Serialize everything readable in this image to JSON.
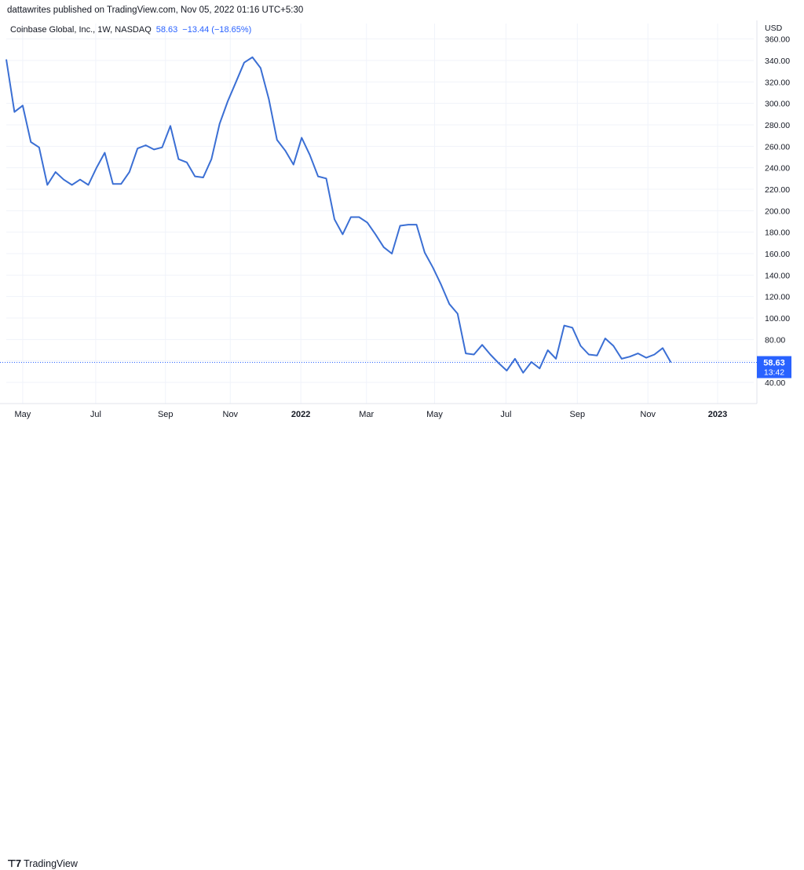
{
  "header": {
    "published_text": "dattawrites published on TradingView.com, Nov 05, 2022 01:16 UTC+5:30"
  },
  "legend": {
    "symbol_text": "Coinbase Global, Inc., 1W, NASDAQ",
    "last_price": "58.63",
    "change": "−13.44 (−18.65%)"
  },
  "price_tag": {
    "value": "58.63",
    "countdown": "13:42"
  },
  "footer": {
    "logo_text": "TradingView"
  },
  "colors": {
    "line": "#3b6fd4",
    "grid": "#f0f3fa",
    "tag": "#2962ff",
    "axis_text": "#131722"
  },
  "chart_data": {
    "type": "line",
    "title": "Coinbase Global, Inc., 1W, NASDAQ",
    "ylabel": "USD",
    "ylim": [
      30,
      360
    ],
    "y_ticks": [
      40,
      60,
      80,
      100,
      120,
      140,
      160,
      180,
      200,
      220,
      240,
      260,
      280,
      300,
      320,
      340,
      360
    ],
    "y_tick_labels": [
      "40.00",
      "",
      "80.00",
      "100.00",
      "120.00",
      "140.00",
      "160.00",
      "180.00",
      "200.00",
      "220.00",
      "240.00",
      "260.00",
      "280.00",
      "300.00",
      "320.00",
      "340.00",
      "360.00"
    ],
    "x_tick_labels": [
      "May",
      "Jul",
      "Sep",
      "Nov",
      "2022",
      "Mar",
      "May",
      "Jul",
      "Sep",
      "Nov",
      "2023"
    ],
    "x_tick_bold": [
      false,
      false,
      false,
      false,
      true,
      false,
      false,
      false,
      false,
      false,
      true
    ],
    "x_tick_week": [
      2.0,
      10.9,
      19.4,
      27.3,
      35.9,
      43.9,
      52.2,
      60.9,
      69.6,
      78.2,
      86.7
    ],
    "last_value": 58.63,
    "grid": true,
    "series": [
      {
        "values": [
          341,
          292,
          298,
          264,
          259,
          224,
          236,
          229,
          224,
          229,
          224,
          240,
          254,
          225,
          225,
          236,
          258,
          261,
          257,
          259,
          279,
          248,
          245,
          232,
          231,
          248,
          281,
          302,
          320,
          338,
          343,
          333,
          304,
          266,
          256,
          243,
          268,
          252,
          232,
          230,
          192,
          178,
          194,
          194,
          189,
          178,
          166,
          160,
          186,
          187,
          187,
          161,
          147,
          131,
          113,
          104,
          67,
          66,
          75,
          66,
          58,
          51,
          62,
          49,
          59,
          53,
          70,
          62,
          93,
          91,
          74,
          66,
          65,
          81,
          74,
          62,
          64,
          67,
          63,
          66,
          72,
          58.63
        ]
      }
    ]
  }
}
